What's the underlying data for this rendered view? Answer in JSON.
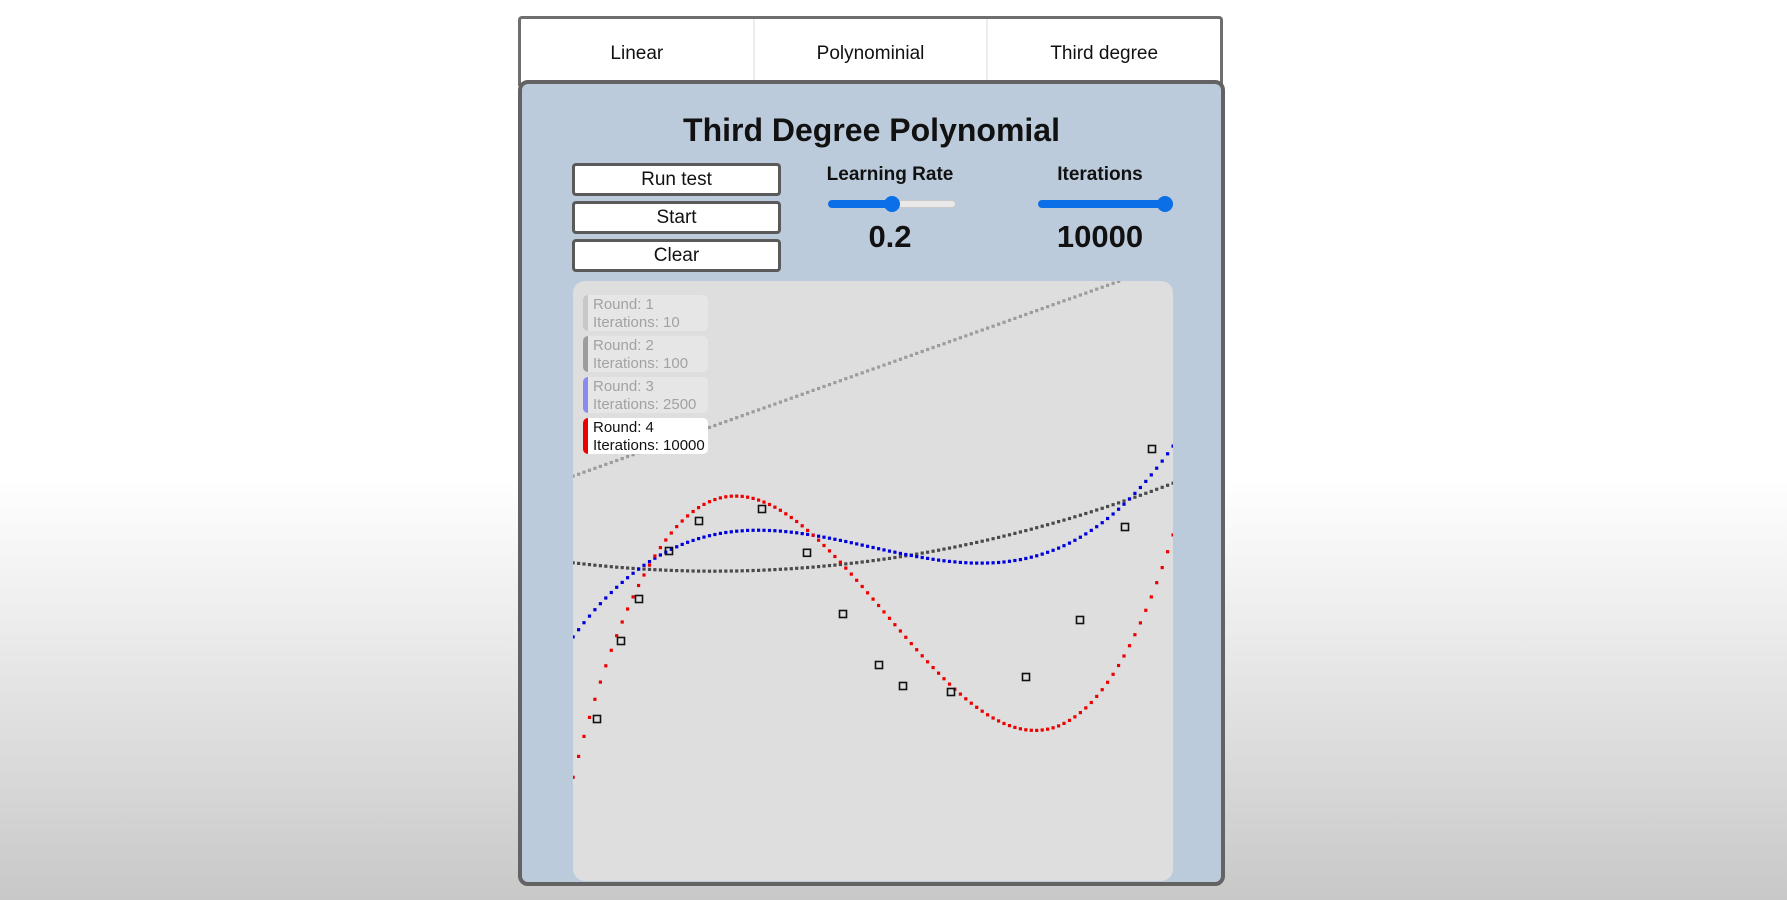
{
  "tabs": [
    {
      "label": "Linear"
    },
    {
      "label": "Polynominial"
    },
    {
      "label": "Third degree"
    }
  ],
  "panel": {
    "title": "Third Degree Polynomial"
  },
  "buttons": {
    "run_test": "Run test",
    "start": "Start",
    "clear": "Clear"
  },
  "learning_rate": {
    "label": "Learning Rate",
    "value": "0.2",
    "slider_fraction": 0.5
  },
  "iterations": {
    "label": "Iterations",
    "value": "10000",
    "slider_fraction": 1.0
  },
  "legend": [
    {
      "round_label": "Round: 1",
      "iterations_label": "Iterations: 10",
      "color": "#c8c8c8",
      "active": false
    },
    {
      "round_label": "Round: 2",
      "iterations_label": "Iterations: 100",
      "color": "#9c9c9c",
      "active": false
    },
    {
      "round_label": "Round: 3",
      "iterations_label": "Iterations: 2500",
      "color": "#8a8aee",
      "active": false
    },
    {
      "round_label": "Round: 4",
      "iterations_label": "Iterations: 10000",
      "color": "#ee0000",
      "active": true
    }
  ],
  "chart_data": {
    "type": "scatter",
    "xlim": [
      0,
      1
    ],
    "ylim": [
      0,
      1
    ],
    "points": [
      {
        "x": 0.04,
        "y": 0.27
      },
      {
        "x": 0.08,
        "y": 0.4
      },
      {
        "x": 0.11,
        "y": 0.47
      },
      {
        "x": 0.16,
        "y": 0.55
      },
      {
        "x": 0.21,
        "y": 0.6
      },
      {
        "x": 0.315,
        "y": 0.62
      },
      {
        "x": 0.39,
        "y": 0.547
      },
      {
        "x": 0.45,
        "y": 0.445
      },
      {
        "x": 0.51,
        "y": 0.36
      },
      {
        "x": 0.55,
        "y": 0.325
      },
      {
        "x": 0.63,
        "y": 0.315
      },
      {
        "x": 0.755,
        "y": 0.34
      },
      {
        "x": 0.845,
        "y": 0.435
      },
      {
        "x": 0.92,
        "y": 0.59
      },
      {
        "x": 0.965,
        "y": 0.72
      }
    ],
    "series": [
      {
        "coeffs": [
          0.675,
          0.357
        ],
        "color": "#9c9c9c"
      },
      {
        "coeffs": [
          0.5305,
          -0.1183,
          0.251
        ],
        "color": "#4a4a4a"
      },
      {
        "coeffs": [
          0.407,
          1.358,
          -3.2,
          2.16
        ],
        "color": "#0000dd"
      },
      {
        "coeffs": [
          0.173,
          3.924,
          -9.8,
          6.28
        ],
        "color": "#ee0000"
      }
    ]
  }
}
